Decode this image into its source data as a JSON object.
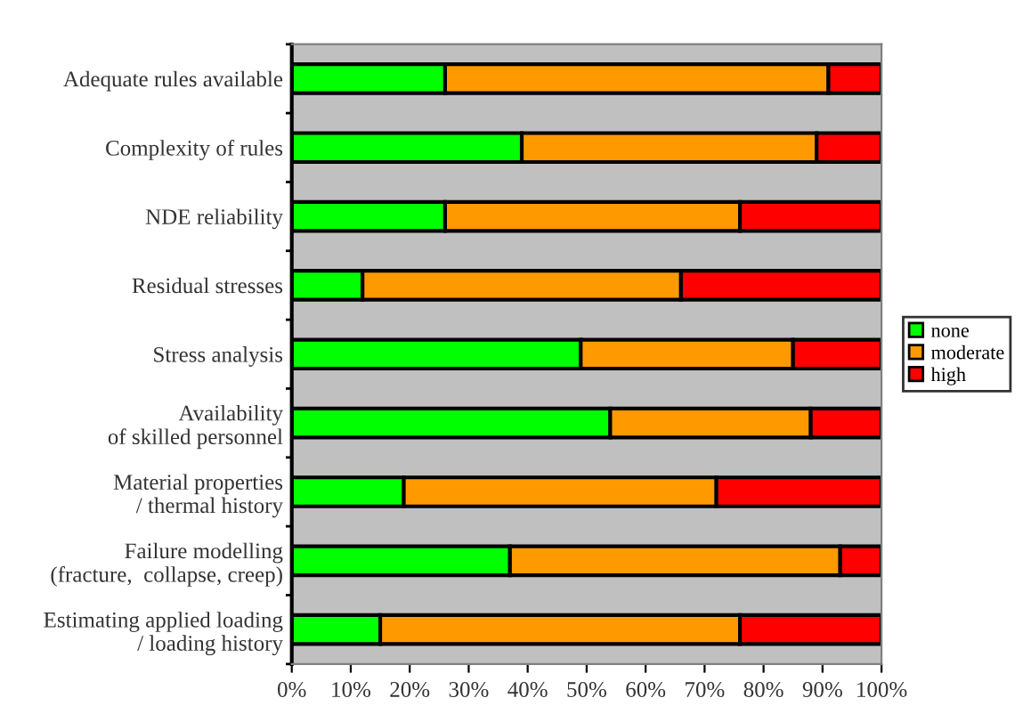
{
  "chart_data": {
    "type": "bar",
    "orientation": "horizontal",
    "stacked": true,
    "categories": [
      "Adequate rules available",
      "Complexity of rules",
      "NDE reliability",
      "Residual stresses",
      "Stress analysis",
      "Availability\nof skilled personnel",
      "Material properties\n/ thermal history",
      "Failure modelling\n(fracture,  collapse, creep)",
      "Estimating applied loading\n/ loading history"
    ],
    "series": [
      {
        "name": "none",
        "color": "#00ff00",
        "values": [
          26,
          39,
          26,
          12,
          49,
          54,
          19,
          37,
          15
        ]
      },
      {
        "name": "moderate",
        "color": "#ff9900",
        "values": [
          65,
          50,
          50,
          54,
          36,
          34,
          53,
          56,
          61
        ]
      },
      {
        "name": "high",
        "color": "#ff0000",
        "values": [
          9,
          11,
          24,
          34,
          15,
          12,
          28,
          7,
          24
        ]
      }
    ],
    "xlim": [
      0,
      100
    ],
    "xticks": [
      {
        "value": 0,
        "label": "0%"
      },
      {
        "value": 10,
        "label": "10%"
      },
      {
        "value": 20,
        "label": "20%"
      },
      {
        "value": 30,
        "label": "30%"
      },
      {
        "value": 40,
        "label": "40%"
      },
      {
        "value": 50,
        "label": "50%"
      },
      {
        "value": 60,
        "label": "60%"
      },
      {
        "value": 70,
        "label": "70%"
      },
      {
        "value": 80,
        "label": "80%"
      },
      {
        "value": 90,
        "label": "90%"
      },
      {
        "value": 100,
        "label": "100%"
      }
    ],
    "grid": false,
    "legend": "right"
  }
}
